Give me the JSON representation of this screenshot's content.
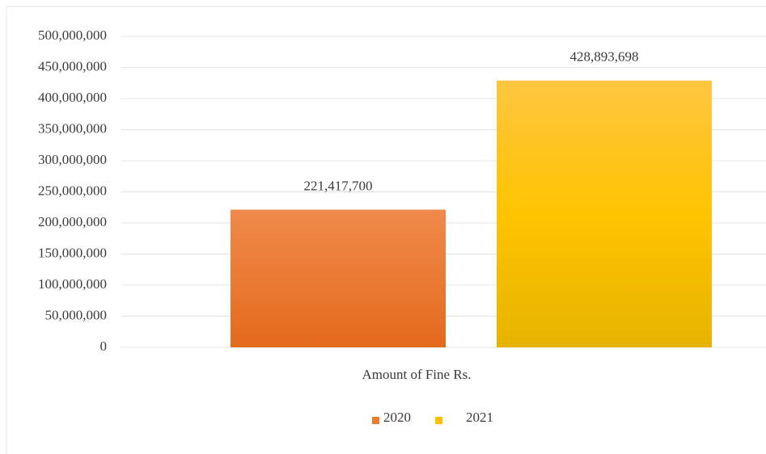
{
  "chart_data": {
    "type": "bar",
    "categories": [
      "Amount of Fine Rs."
    ],
    "series": [
      {
        "name": "2020",
        "color": "#ed7d31",
        "values": [
          221417700
        ],
        "value_labels": [
          "221,417,700"
        ]
      },
      {
        "name": "2021",
        "color": "#ffc000",
        "values": [
          428893698
        ],
        "value_labels": [
          "428,893,698"
        ]
      }
    ],
    "ylim": [
      0,
      500000000
    ],
    "yticks": [
      0,
      {
        "value": 50000000,
        "label": "50,000,000"
      },
      {
        "value": 100000000,
        "label": "100,000,000"
      },
      {
        "value": 150000000,
        "label": "150,000,000"
      },
      {
        "value": 200000000,
        "label": "200,000,000"
      },
      {
        "value": 250000000,
        "label": "250,000,000"
      },
      {
        "value": 300000000,
        "label": "300,000,000"
      },
      {
        "value": 350000000,
        "label": "350,000,000"
      },
      {
        "value": 400000000,
        "label": "400,000,000"
      },
      {
        "value": 450000000,
        "label": "450,000,000"
      },
      {
        "value": 500000000,
        "label": "500,000,000"
      }
    ],
    "grid": true,
    "legend": "bottom"
  }
}
